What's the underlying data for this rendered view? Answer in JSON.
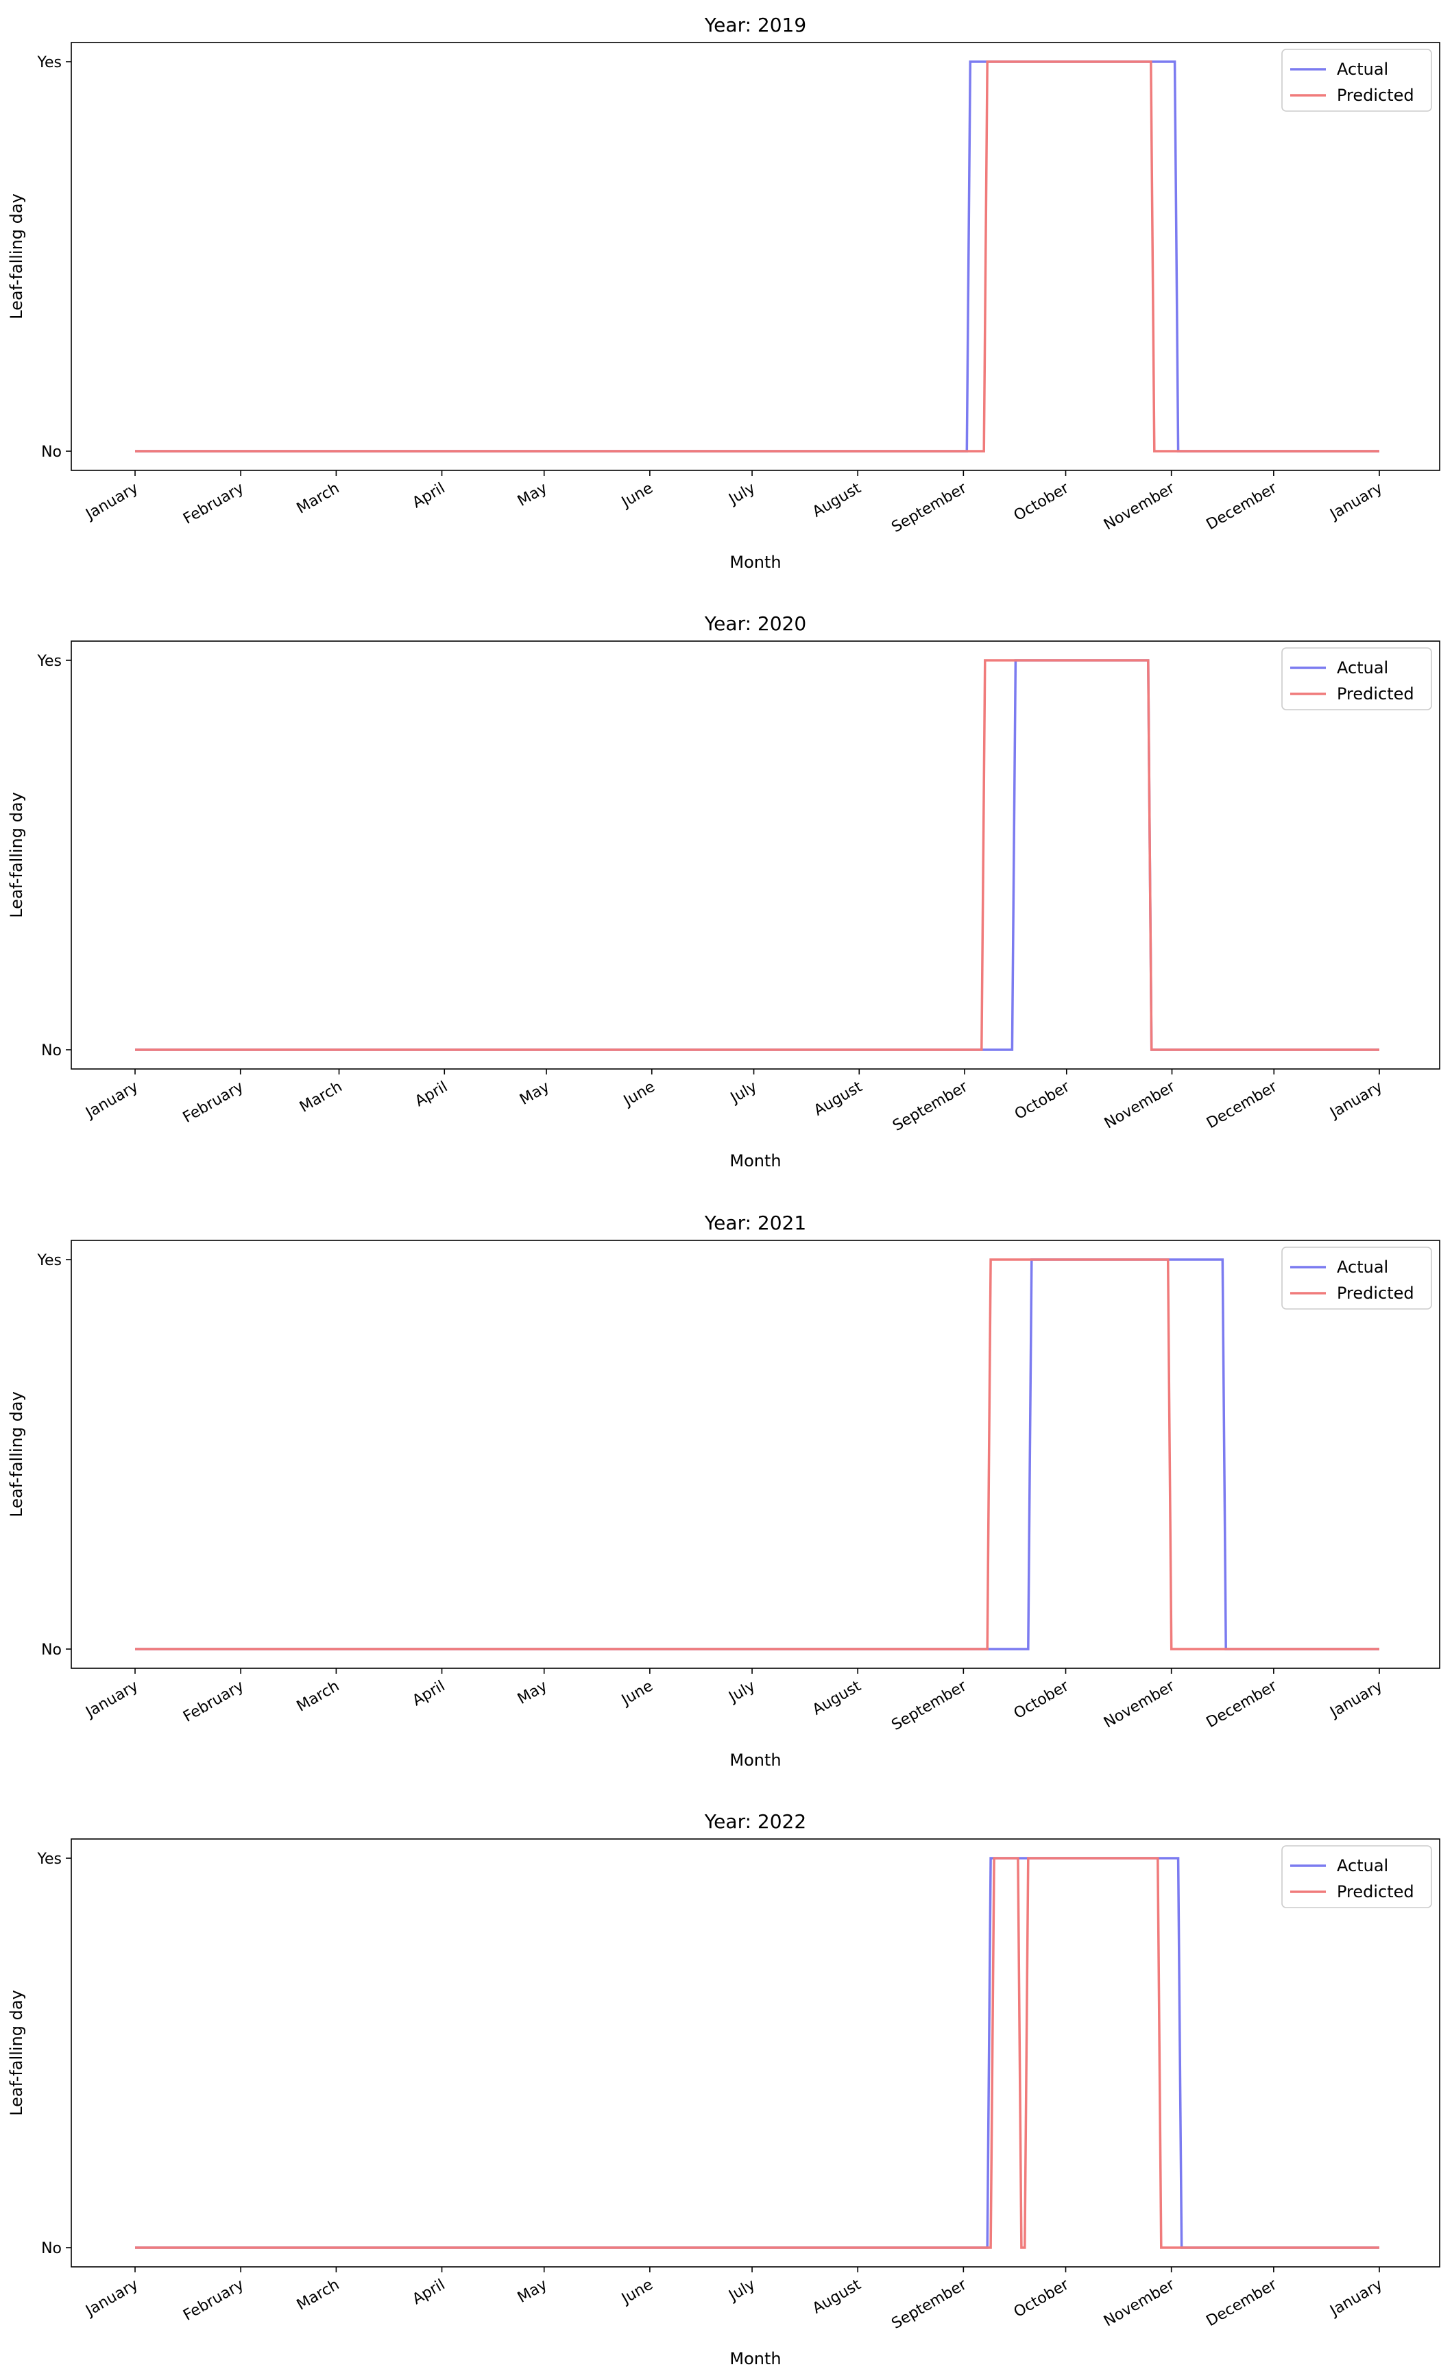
{
  "colors": {
    "actual": "#7b7bf0",
    "predicted": "#f07b7b",
    "axes": "#000000",
    "legend_border": "#cccccc",
    "background": "#ffffff"
  },
  "chart_data": [
    {
      "type": "line",
      "title": "Year: 2019",
      "xlabel": "Month",
      "ylabel": "Leaf-falling day",
      "x_ticks": [
        "January",
        "February",
        "March",
        "April",
        "May",
        "June",
        "July",
        "August",
        "September",
        "October",
        "November",
        "December",
        "January"
      ],
      "y_ticks": [
        "No",
        "Yes"
      ],
      "legend": {
        "position": "top-right",
        "entries": [
          "Actual",
          "Predicted"
        ]
      },
      "grid": false,
      "series": [
        {
          "name": "Actual",
          "step": true,
          "points": [
            [
              "2019-01-01",
              0
            ],
            [
              "2019-09-02",
              0
            ],
            [
              "2019-09-03",
              1
            ],
            [
              "2019-11-02",
              1
            ],
            [
              "2019-11-03",
              0
            ],
            [
              "2020-01-01",
              0
            ]
          ]
        },
        {
          "name": "Predicted",
          "step": true,
          "points": [
            [
              "2019-01-01",
              0
            ],
            [
              "2019-09-07",
              0
            ],
            [
              "2019-09-08",
              1
            ],
            [
              "2019-10-26",
              1
            ],
            [
              "2019-10-27",
              0
            ],
            [
              "2020-01-01",
              0
            ]
          ]
        }
      ]
    },
    {
      "type": "line",
      "title": "Year: 2020",
      "xlabel": "Month",
      "ylabel": "Leaf-falling day",
      "x_ticks": [
        "January",
        "February",
        "March",
        "April",
        "May",
        "June",
        "July",
        "August",
        "September",
        "October",
        "November",
        "December",
        "January"
      ],
      "y_ticks": [
        "No",
        "Yes"
      ],
      "legend": {
        "position": "top-right",
        "entries": [
          "Actual",
          "Predicted"
        ]
      },
      "grid": false,
      "series": [
        {
          "name": "Actual",
          "step": true,
          "points": [
            [
              "2020-01-01",
              0
            ],
            [
              "2020-09-15",
              0
            ],
            [
              "2020-09-16",
              1
            ],
            [
              "2020-10-25",
              1
            ],
            [
              "2020-10-26",
              0
            ],
            [
              "2021-01-01",
              0
            ]
          ]
        },
        {
          "name": "Predicted",
          "step": true,
          "points": [
            [
              "2020-01-01",
              0
            ],
            [
              "2020-09-06",
              0
            ],
            [
              "2020-09-07",
              1
            ],
            [
              "2020-10-25",
              1
            ],
            [
              "2020-10-26",
              0
            ],
            [
              "2021-01-01",
              0
            ]
          ]
        }
      ]
    },
    {
      "type": "line",
      "title": "Year: 2021",
      "xlabel": "Month",
      "ylabel": "Leaf-falling day",
      "x_ticks": [
        "January",
        "February",
        "March",
        "April",
        "May",
        "June",
        "July",
        "August",
        "September",
        "October",
        "November",
        "December",
        "January"
      ],
      "y_ticks": [
        "No",
        "Yes"
      ],
      "legend": {
        "position": "top-right",
        "entries": [
          "Actual",
          "Predicted"
        ]
      },
      "grid": false,
      "series": [
        {
          "name": "Actual",
          "step": true,
          "points": [
            [
              "2021-01-01",
              0
            ],
            [
              "2021-09-20",
              0
            ],
            [
              "2021-09-21",
              1
            ],
            [
              "2021-11-16",
              1
            ],
            [
              "2021-11-17",
              0
            ],
            [
              "2022-01-01",
              0
            ]
          ]
        },
        {
          "name": "Predicted",
          "step": true,
          "points": [
            [
              "2021-01-01",
              0
            ],
            [
              "2021-09-08",
              0
            ],
            [
              "2021-09-09",
              1
            ],
            [
              "2021-10-31",
              1
            ],
            [
              "2021-11-01",
              0
            ],
            [
              "2022-01-01",
              0
            ]
          ]
        }
      ]
    },
    {
      "type": "line",
      "title": "Year: 2022",
      "xlabel": "Month",
      "ylabel": "Leaf-falling day",
      "x_ticks": [
        "January",
        "February",
        "March",
        "April",
        "May",
        "June",
        "July",
        "August",
        "September",
        "October",
        "November",
        "December",
        "January"
      ],
      "y_ticks": [
        "No",
        "Yes"
      ],
      "legend": {
        "position": "top-right",
        "entries": [
          "Actual",
          "Predicted"
        ]
      },
      "grid": false,
      "series": [
        {
          "name": "Actual",
          "step": true,
          "points": [
            [
              "2022-01-01",
              0
            ],
            [
              "2022-09-08",
              0
            ],
            [
              "2022-09-09",
              1
            ],
            [
              "2022-11-03",
              1
            ],
            [
              "2022-11-04",
              0
            ],
            [
              "2023-01-01",
              0
            ]
          ]
        },
        {
          "name": "Predicted",
          "step": true,
          "points": [
            [
              "2022-01-01",
              0
            ],
            [
              "2022-09-09",
              0
            ],
            [
              "2022-09-10",
              1
            ],
            [
              "2022-09-17",
              1
            ],
            [
              "2022-09-18",
              0
            ],
            [
              "2022-09-19",
              0
            ],
            [
              "2022-09-20",
              1
            ],
            [
              "2022-10-28",
              1
            ],
            [
              "2022-10-29",
              0
            ],
            [
              "2023-01-01",
              0
            ]
          ]
        }
      ]
    }
  ]
}
